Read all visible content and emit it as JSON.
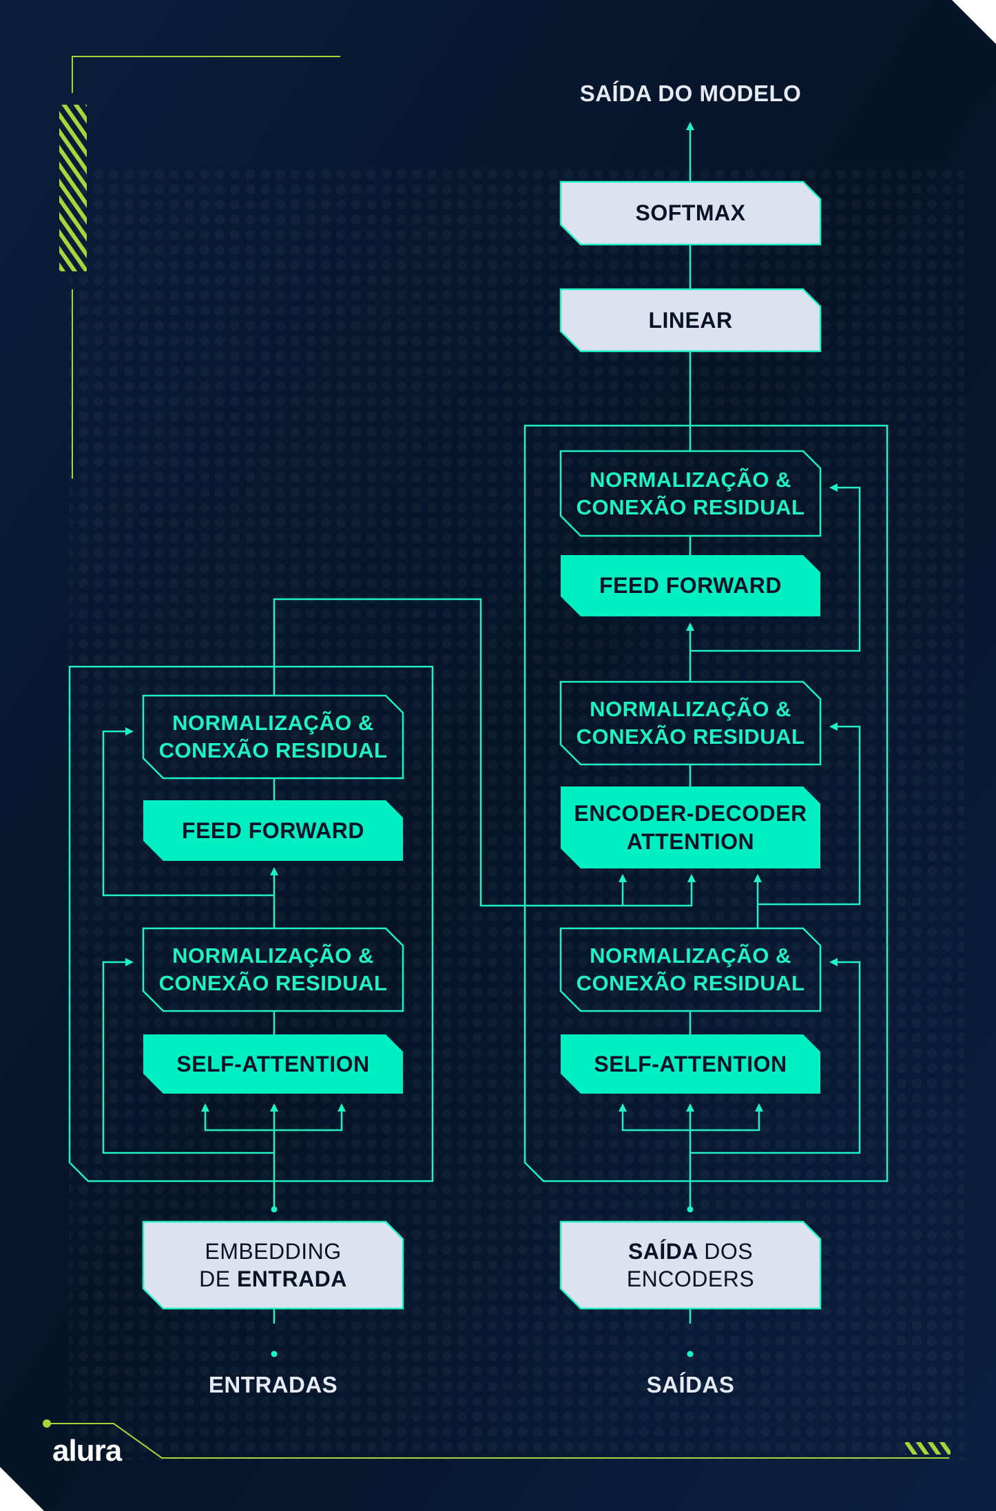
{
  "colors": {
    "background": "#071830",
    "accent": "#1ff2c4",
    "box_light": "#dde3ee",
    "lime": "#a6d63c",
    "text_dark": "#0a1326",
    "text_white": "#e6ebf3"
  },
  "brand": {
    "logo": "alura"
  },
  "encoder": {
    "input_label": "ENTRADAS",
    "embedding": {
      "line1_a": "EMBEDDING",
      "line2_a": "DE ",
      "line2_b": "ENTRADA"
    },
    "self_attention": "SELF-ATTENTION",
    "norm_1": "NORMALIZAÇÃO &\nCONEXÃO RESIDUAL",
    "feed_forward": "FEED FORWARD",
    "norm_2": "NORMALIZAÇÃO &\nCONEXÃO RESIDUAL"
  },
  "decoder": {
    "input_label": "SAÍDAS",
    "encoder_outputs": {
      "line1_a": "SAÍDA ",
      "line1_b": "DOS",
      "line2_a": "ENCODERS"
    },
    "self_attention": "SELF-ATTENTION",
    "norm_1": "NORMALIZAÇÃO &\nCONEXÃO RESIDUAL",
    "enc_dec_attention": "ENCODER-DECODER\nATTENTION",
    "norm_2": "NORMALIZAÇÃO &\nCONEXÃO RESIDUAL",
    "feed_forward": "FEED FORWARD",
    "norm_3": "NORMALIZAÇÃO &\nCONEXÃO RESIDUAL"
  },
  "head": {
    "linear": "LINEAR",
    "softmax": "SOFTMAX",
    "output_label": "SAÍDA DO MODELO"
  }
}
